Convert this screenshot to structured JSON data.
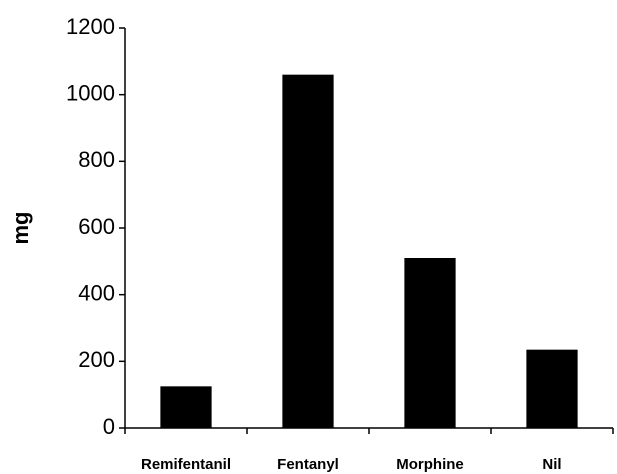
{
  "chart_data": {
    "type": "bar",
    "y_label": "mg",
    "categories": [
      "Remifentanil",
      "Fentanyl",
      "Morphine",
      "Nil"
    ],
    "values": [
      125,
      1060,
      510,
      235
    ],
    "color": "#000000",
    "ylim": [
      0,
      1200
    ],
    "yticks": [
      0,
      200,
      400,
      600,
      800,
      1000,
      1200
    ],
    "grid": false
  }
}
